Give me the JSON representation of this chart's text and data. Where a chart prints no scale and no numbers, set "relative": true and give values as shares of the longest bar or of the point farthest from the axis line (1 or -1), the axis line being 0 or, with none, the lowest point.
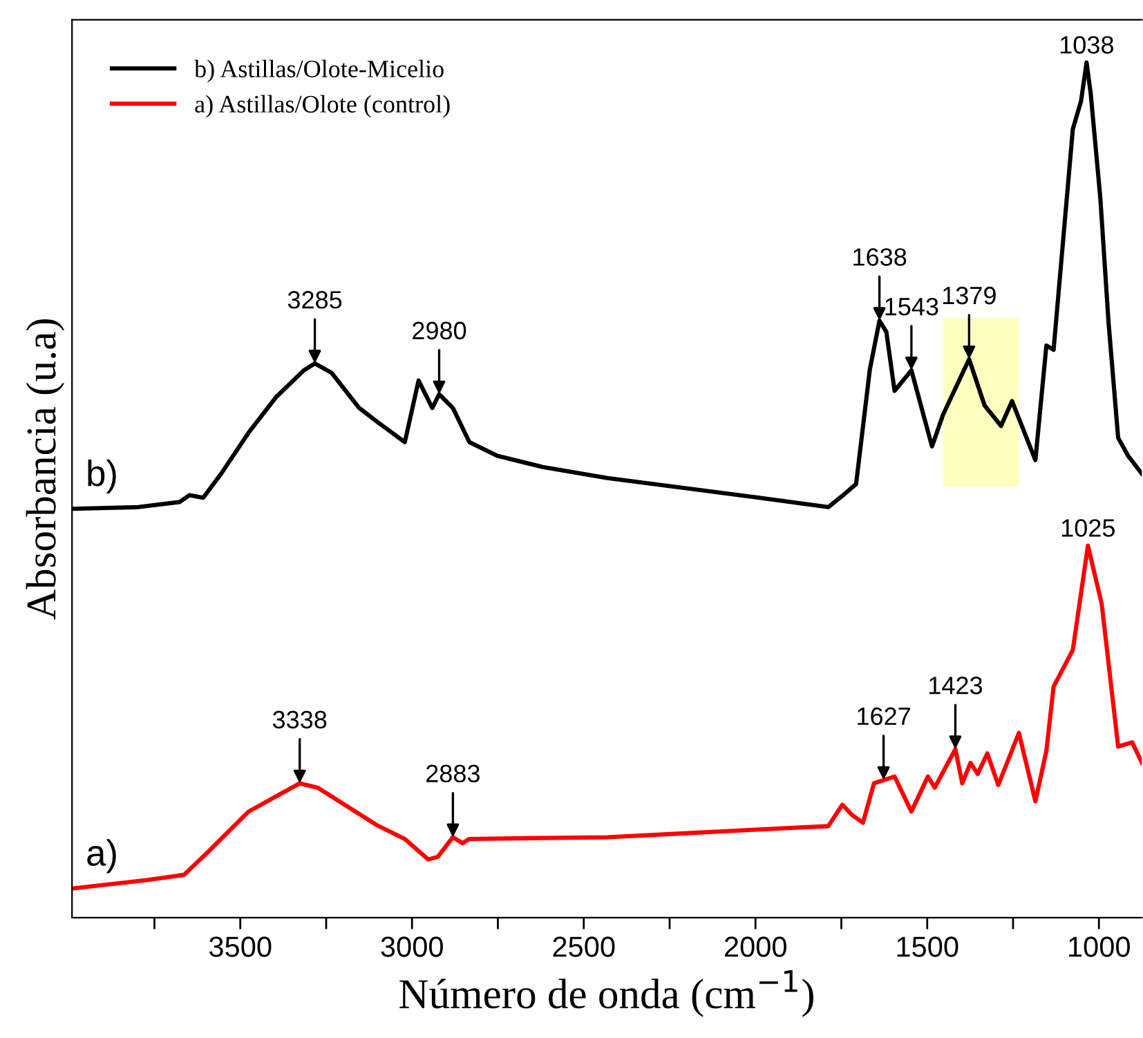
{
  "chart_data": {
    "type": "line",
    "relative": true,
    "xlabel": "Número de onda (cm$^{−1}$)",
    "ylabel": "Absorbancia (u.a)",
    "xlim": [
      3990,
      875
    ],
    "xticks": [
      {
        "value": 3750,
        "label": null
      },
      3500,
      {
        "value": 3250,
        "label": null
      },
      3000,
      {
        "value": 2750,
        "label": null
      },
      2500,
      {
        "value": 2250,
        "label": null
      },
      2000,
      {
        "value": 1750,
        "label": null
      },
      1500,
      {
        "value": 1250,
        "label": null
      },
      1000
    ],
    "legend": "top left",
    "grid": false,
    "marker": "none",
    "line_style": "solid",
    "series": [
      {
        "name": "b) Astillas/Olote-Micelio",
        "color": "#000000",
        "x": [
          3990,
          3797,
          3677,
          3648,
          3608,
          3556,
          3476,
          3395,
          3315,
          3283,
          3234,
          3154,
          3102,
          3021,
          2981,
          2941,
          2921,
          2881,
          2833,
          2752,
          2620,
          2431,
          1989,
          1788,
          1739,
          1707,
          1667,
          1639,
          1619,
          1595,
          1546,
          1486,
          1454,
          1378,
          1333,
          1285,
          1253,
          1185,
          1153,
          1132,
          1076,
          1052,
          1036,
          1024,
          996,
          972,
          944,
          915,
          875
        ],
        "values": [
          0.478,
          0.48,
          0.486,
          0.494,
          0.491,
          0.519,
          0.567,
          0.609,
          0.64,
          0.648,
          0.637,
          0.596,
          0.58,
          0.556,
          0.628,
          0.596,
          0.612,
          0.596,
          0.556,
          0.54,
          0.527,
          0.514,
          0.491,
          0.48,
          0.496,
          0.507,
          0.641,
          0.698,
          0.685,
          0.616,
          0.64,
          0.551,
          0.588,
          0.653,
          0.599,
          0.575,
          0.604,
          0.535,
          0.669,
          0.664,
          0.922,
          0.955,
          1.0,
          0.964,
          0.842,
          0.696,
          0.561,
          0.54,
          0.519
        ]
      },
      {
        "name": "a) Astillas/Olote (control)",
        "color": "#ff0000",
        "x": [
          3990,
          3769,
          3664,
          3596,
          3476,
          3327,
          3275,
          3102,
          3021,
          2953,
          2925,
          2881,
          2853,
          2833,
          2431,
          1989,
          1788,
          1747,
          1719,
          1687,
          1655,
          1595,
          1546,
          1498,
          1478,
          1418,
          1398,
          1374,
          1353,
          1325,
          1293,
          1233,
          1185,
          1153,
          1132,
          1076,
          1032,
          992,
          944,
          903,
          875
        ],
        "values": [
          0.034,
          0.044,
          0.05,
          0.076,
          0.124,
          0.157,
          0.152,
          0.108,
          0.092,
          0.068,
          0.071,
          0.094,
          0.087,
          0.092,
          0.094,
          0.103,
          0.107,
          0.132,
          0.12,
          0.111,
          0.157,
          0.165,
          0.124,
          0.165,
          0.152,
          0.197,
          0.157,
          0.181,
          0.168,
          0.192,
          0.155,
          0.216,
          0.136,
          0.195,
          0.27,
          0.313,
          0.435,
          0.367,
          0.2,
          0.205,
          0.181
        ]
      }
    ],
    "bands": [
      {
        "axis": "x",
        "from": 1454,
        "to": 1233,
        "color": "#ffffc0"
      }
    ],
    "annotations": [
      {
        "text": "3285",
        "x": 3283,
        "y": 0.648
      },
      {
        "text": "2980",
        "x": 2921,
        "y": 0.612
      },
      {
        "text": "1638",
        "x": 1639,
        "y": 0.698
      },
      {
        "text": "1543",
        "x": 1546,
        "y": 0.64
      },
      {
        "text": "1379",
        "x": 1378,
        "y": 0.653
      },
      {
        "text": "1038",
        "x": 1036,
        "y": 1.0
      },
      {
        "text": "3338",
        "x": 3327,
        "y": 0.157
      },
      {
        "text": "2883",
        "x": 2881,
        "y": 0.094
      },
      {
        "text": "1627",
        "x": 1627,
        "y": 0.161
      },
      {
        "text": "1423",
        "x": 1418,
        "y": 0.197
      },
      {
        "text": "1025",
        "x": 1032,
        "y": 0.435
      },
      {
        "text": "b)",
        "x": 3950,
        "y": 0.478
      },
      {
        "text": "a)",
        "x": 3950,
        "y": 0.034
      }
    ]
  }
}
